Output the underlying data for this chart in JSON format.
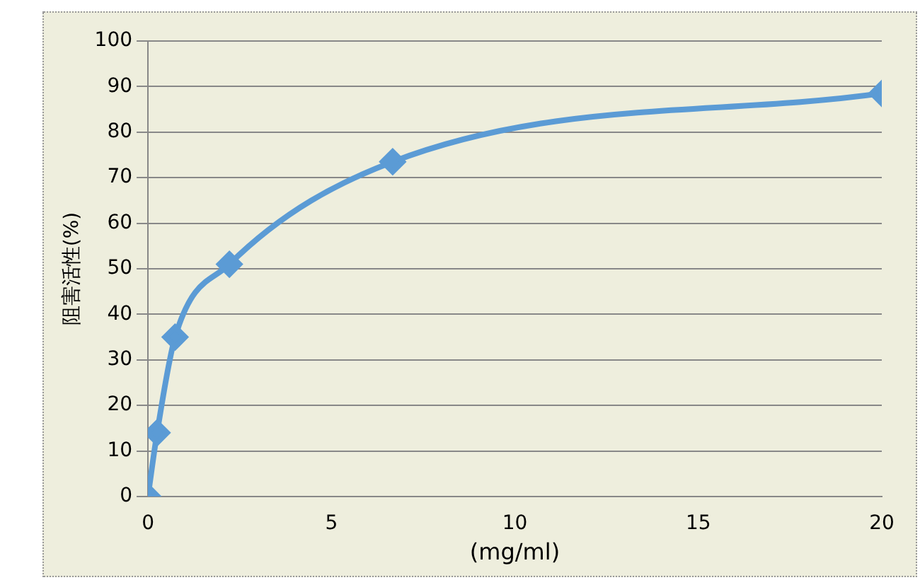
{
  "chart_data": {
    "type": "line",
    "xlabel": "(mg/ml)",
    "ylabel": "阻害活性(%)",
    "x": [
      0,
      0.25,
      0.74,
      2.22,
      6.67,
      20
    ],
    "series": [
      {
        "color": "#5b9bd5",
        "values": [
          0,
          14,
          35,
          51,
          73.5,
          88.5
        ]
      }
    ],
    "xlim": [
      0,
      20
    ],
    "xticks": [
      0,
      5,
      10,
      15,
      20
    ],
    "ylim": [
      0,
      100
    ],
    "yticks": [
      0,
      10,
      20,
      30,
      40,
      50,
      60,
      70,
      80,
      90,
      100
    ],
    "grid": "y",
    "legend": false,
    "marker": "diamond",
    "line_style": "solid"
  }
}
